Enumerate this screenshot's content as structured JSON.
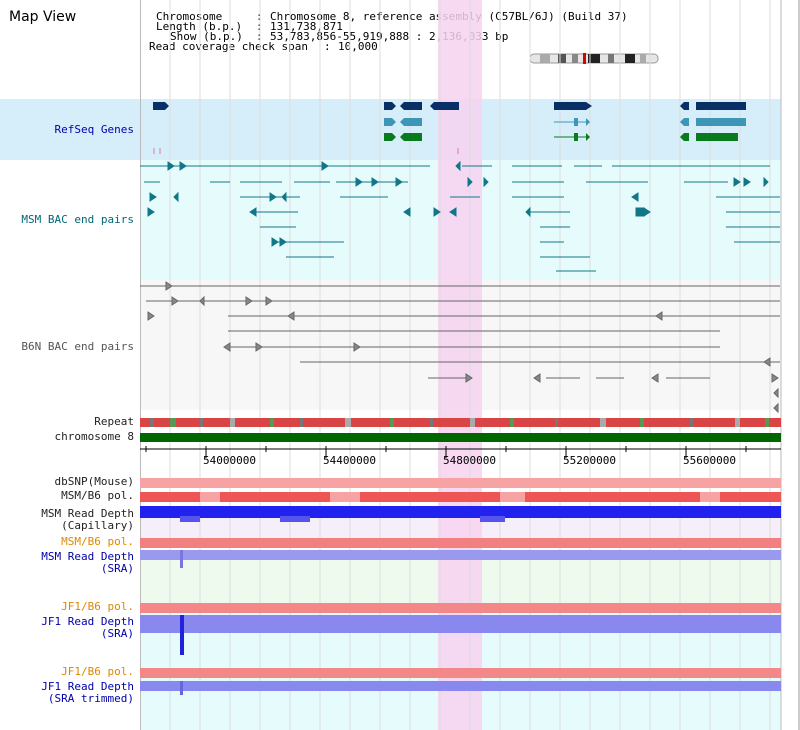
{
  "page": {
    "title": "Map View"
  },
  "header": {
    "chromosome_key": "Chromosome",
    "chromosome_val": "Chromosome 8, reference assembly (C57BL/6J) (Build 37)",
    "length_key": "Length (b.p.)",
    "length_val": "131,738,871",
    "show_key": "Show (b.p.)",
    "show_val": "53,783,856-55,919,888 : 2,136,033 bp",
    "coverage_key": "Read coverage check span",
    "coverage_val": "10,000"
  },
  "tracks": {
    "refseq": "RefSeq Genes",
    "msm_bac": "MSM BAC end pairs",
    "b6n_bac": "B6N BAC end pairs",
    "repeat": "Repeat",
    "chromosome": "chromosome 8",
    "dbsnp": "dbSNP(Mouse)",
    "msm_b6_pol_1": "MSM/B6 pol.",
    "msm_depth_cap_1": "MSM Read Depth",
    "msm_depth_cap_2": "(Capillary)",
    "msm_b6_pol_2": "MSM/B6 pol.",
    "msm_depth_sra_1": "MSM Read Depth",
    "msm_depth_sra_2": "(SRA)",
    "jf1_b6_pol_1": "JF1/B6 pol.",
    "jf1_depth_sra_1": "JF1 Read Depth",
    "jf1_depth_sra_2": "(SRA)",
    "jf1_b6_pol_2": "JF1/B6 pol.",
    "jf1_depth_trim_1": "JF1 Read Depth",
    "jf1_depth_trim_2": "(SRA trimmed)"
  },
  "axis": {
    "ticks": [
      "54000000",
      "54400000",
      "54800000",
      "55200000",
      "55600000"
    ]
  },
  "colors": {
    "refseq_bg": "#d6eefa",
    "msm_bg": "#e6fbfb",
    "b6n_bg": "#f7f7f7",
    "highlight": "#f7d2f0",
    "chrom_bar": "#006600",
    "gene_dark": "#0a2f66",
    "gene_mid": "#3f95b5",
    "gene_green": "#0a7a1e",
    "bac_teal": "#117788",
    "bac_grey": "#777777",
    "depth_blue": "#2222ee",
    "depth_light": "#8888ee",
    "pol_red": "#ee3333"
  }
}
